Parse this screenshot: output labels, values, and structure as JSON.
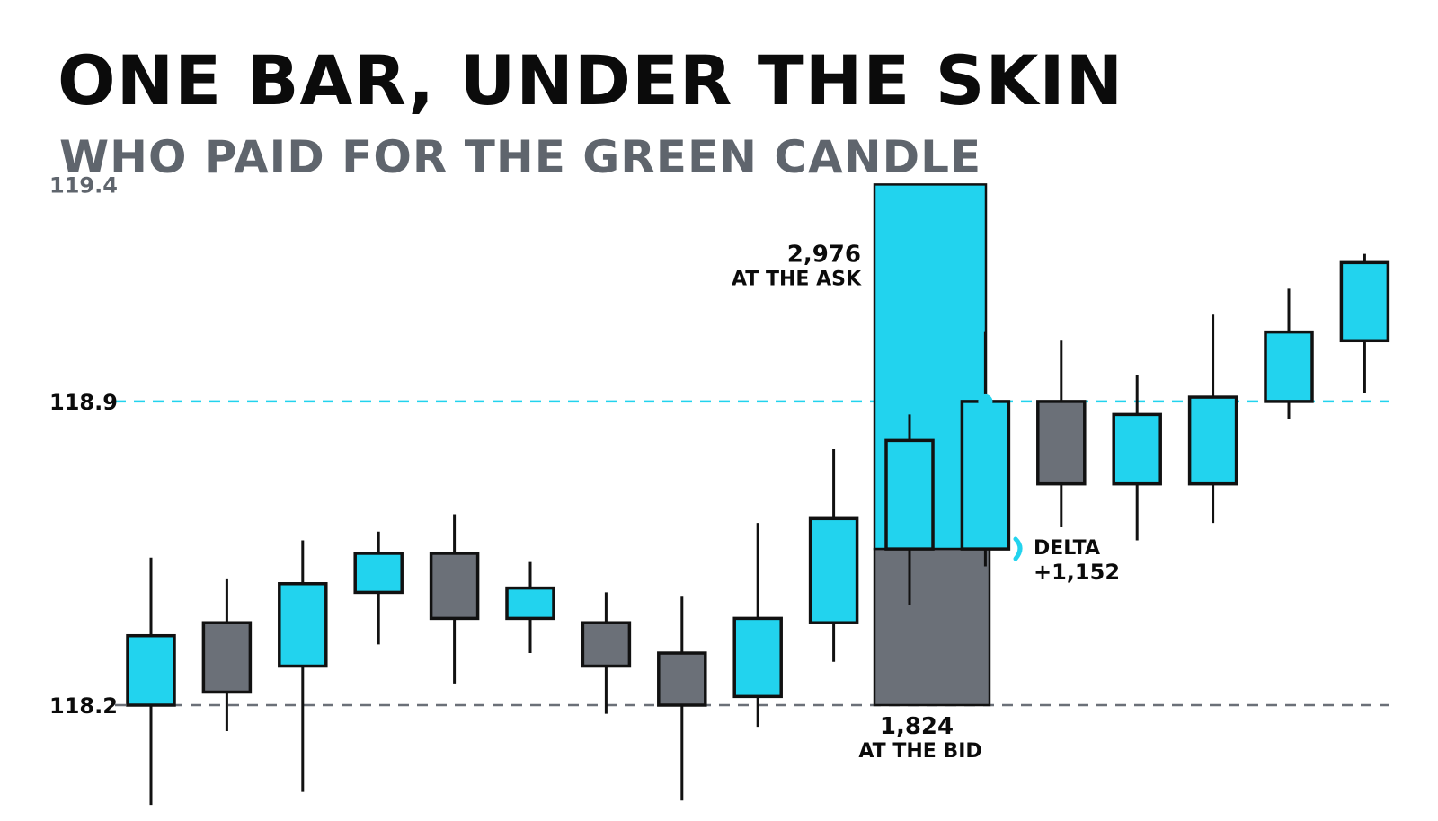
{
  "colors": {
    "up": "#22d3ee",
    "down": "#6b7078",
    "outline": "#111111",
    "subtitle": "#5f656d",
    "refline_high": "#22d3ee",
    "refline_low": "#6b7078"
  },
  "chart_data": {
    "type": "candlestick",
    "title": "ONE BAR, UNDER THE SKIN",
    "subtitle": "WHO PAID FOR THE GREEN CANDLE",
    "y_ticks": [
      {
        "value": 119.4,
        "label": "119.4",
        "muted": true
      },
      {
        "value": 118.9,
        "label": "118.9",
        "muted": false
      },
      {
        "value": 118.2,
        "label": "118.2",
        "muted": false
      }
    ],
    "reference_lines": [
      {
        "value": 118.9,
        "style": "dashed",
        "color": "#22d3ee"
      },
      {
        "value": 118.2,
        "style": "dashed",
        "color": "#6b7078"
      }
    ],
    "candles": [
      {
        "open": 118.2,
        "high": 118.54,
        "low": 117.97,
        "close": 118.36,
        "dir": "up"
      },
      {
        "open": 118.39,
        "high": 118.49,
        "low": 118.14,
        "close": 118.23,
        "dir": "down"
      },
      {
        "open": 118.29,
        "high": 118.58,
        "low": 118.0,
        "close": 118.48,
        "dir": "up"
      },
      {
        "open": 118.46,
        "high": 118.6,
        "low": 118.34,
        "close": 118.55,
        "dir": "up"
      },
      {
        "open": 118.55,
        "high": 118.64,
        "low": 118.25,
        "close": 118.4,
        "dir": "down"
      },
      {
        "open": 118.4,
        "high": 118.53,
        "low": 118.32,
        "close": 118.47,
        "dir": "up"
      },
      {
        "open": 118.39,
        "high": 118.46,
        "low": 118.18,
        "close": 118.29,
        "dir": "down"
      },
      {
        "open": 118.32,
        "high": 118.45,
        "low": 117.98,
        "close": 118.2,
        "dir": "down"
      },
      {
        "open": 118.22,
        "high": 118.62,
        "low": 118.15,
        "close": 118.4,
        "dir": "up"
      },
      {
        "open": 118.39,
        "high": 118.79,
        "low": 118.3,
        "close": 118.63,
        "dir": "up"
      },
      {
        "open": 118.56,
        "high": 118.87,
        "low": 118.43,
        "close": 118.81,
        "dir": "up"
      },
      {
        "open": 118.56,
        "high": 119.06,
        "low": 118.52,
        "close": 118.9,
        "dir": "up",
        "highlight": true
      },
      {
        "open": 118.9,
        "high": 119.04,
        "low": 118.61,
        "close": 118.71,
        "dir": "down"
      },
      {
        "open": 118.71,
        "high": 118.96,
        "low": 118.58,
        "close": 118.87,
        "dir": "up"
      },
      {
        "open": 118.71,
        "high": 119.1,
        "low": 118.62,
        "close": 118.91,
        "dir": "up"
      },
      {
        "open": 118.9,
        "high": 119.16,
        "low": 118.86,
        "close": 119.06,
        "dir": "up"
      },
      {
        "open": 119.04,
        "high": 119.24,
        "low": 118.92,
        "close": 119.22,
        "dir": "up"
      }
    ],
    "volume_split": {
      "candle_index": 11,
      "ask_top": 119.4,
      "split": 118.56,
      "bid_bottom": 118.2,
      "ask_value": "2,976",
      "ask_label": "AT THE ASK",
      "bid_value": "1,824",
      "bid_label": "AT THE BID",
      "delta_label": "DELTA",
      "delta_value": "+1,152"
    }
  }
}
